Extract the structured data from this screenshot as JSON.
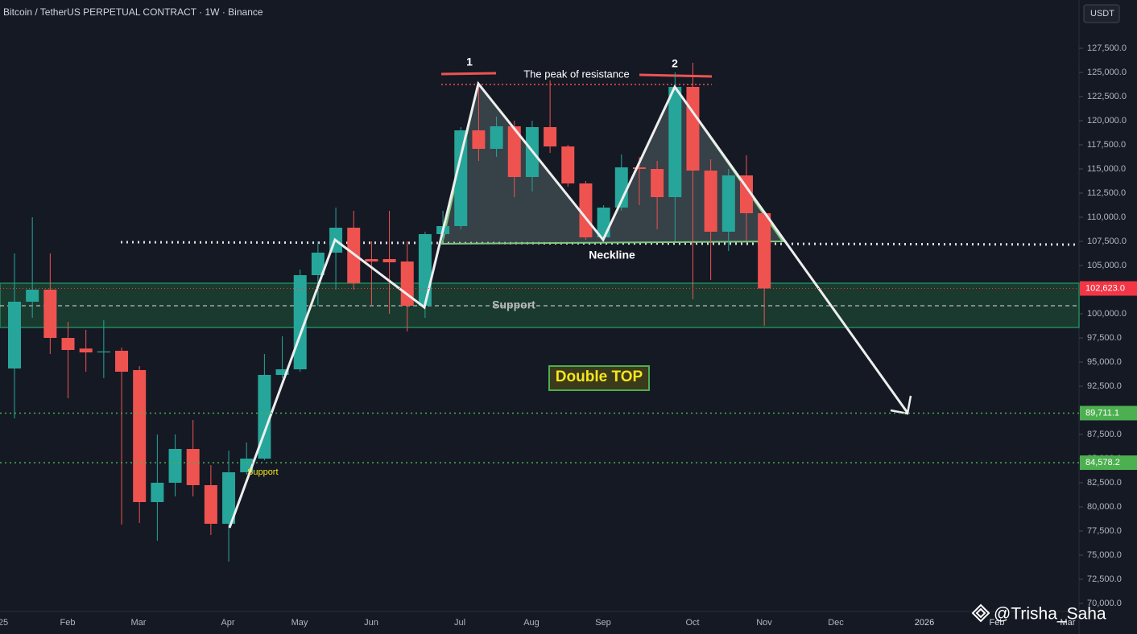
{
  "chart_data": {
    "type": "candlestick",
    "title": "Bitcoin / TetherUS PERPETUAL CONTRACT · 1W · Binance",
    "currency": "USDT",
    "up_color": "#26a69a",
    "down_color": "#ef5350",
    "open": [
      94333,
      101250,
      102500,
      97500,
      96400,
      96000,
      96170,
      94167,
      80500,
      82500,
      86000,
      82250,
      78250,
      83583,
      85000,
      93667,
      94250,
      104000,
      106333,
      108917,
      105667,
      105667,
      105417,
      100833,
      108250,
      109083,
      119000,
      117083,
      119417,
      114167,
      119333,
      117333,
      113500,
      107917,
      111000,
      115167,
      115000,
      112083,
      123500,
      114833,
      108500,
      114333,
      110417
    ],
    "high": [
      106250,
      110000,
      106250,
      99167,
      98333,
      99333,
      96500,
      94583,
      87500,
      87500,
      89000,
      84333,
      85833,
      86667,
      95833,
      97667,
      104583,
      107500,
      111000,
      110667,
      107500,
      110667,
      107500,
      108500,
      110667,
      119333,
      123750,
      120417,
      120000,
      120000,
      124167,
      117500,
      113750,
      111250,
      116500,
      116250,
      115833,
      125000,
      126000,
      116000,
      115000,
      116417,
      110667
    ],
    "low": [
      89167,
      99583,
      95833,
      91250,
      94000,
      93333,
      78167,
      78333,
      76500,
      81083,
      81083,
      77083,
      74333,
      83333,
      84833,
      93333,
      94000,
      100833,
      102500,
      102500,
      100833,
      100000,
      98167,
      99583,
      107500,
      108750,
      115833,
      116250,
      112083,
      112667,
      116667,
      113167,
      107667,
      107500,
      110667,
      111250,
      108750,
      107500,
      101500,
      103500,
      106500,
      107500,
      98750
    ],
    "close": [
      101250,
      102500,
      97500,
      96250,
      96000,
      96100,
      94000,
      80500,
      82500,
      86000,
      82250,
      78250,
      83583,
      85000,
      93667,
      94250,
      104000,
      106333,
      108917,
      103167,
      105417,
      105333,
      100833,
      108250,
      109083,
      119000,
      117083,
      119417,
      114167,
      119333,
      117333,
      113500,
      107917,
      111000,
      115167,
      115000,
      112083,
      123500,
      114833,
      108500,
      114333,
      110417,
      102623
    ],
    "ylim": [
      69167,
      132500
    ],
    "yticks": [
      {
        "value": 127500,
        "label": "127,500.0"
      },
      {
        "value": 125000,
        "label": "125,000.0"
      },
      {
        "value": 122500,
        "label": "122,500.0"
      },
      {
        "value": 120000,
        "label": "120,000.0"
      },
      {
        "value": 117500,
        "label": "117,500.0"
      },
      {
        "value": 115000,
        "label": "115,000.0"
      },
      {
        "value": 112500,
        "label": "112,500.0"
      },
      {
        "value": 110000,
        "label": "110,000.0"
      },
      {
        "value": 107500,
        "label": "107,500.0"
      },
      {
        "value": 105000,
        "label": "105,000.0"
      },
      {
        "value": 102500,
        "label": "102,500.0"
      },
      {
        "value": 100000,
        "label": "100,000.0"
      },
      {
        "value": 97500,
        "label": "97,500.0"
      },
      {
        "value": 95000,
        "label": "95,000.0"
      },
      {
        "value": 92500,
        "label": "92,500.0"
      },
      {
        "value": 90000,
        "label": "90,000.0"
      },
      {
        "value": 87500,
        "label": "87,500.0"
      },
      {
        "value": 85000,
        "label": "85,000.0"
      },
      {
        "value": 82500,
        "label": "82,500.0"
      },
      {
        "value": 80000,
        "label": "80,000.0"
      },
      {
        "value": 77500,
        "label": "77,500.0"
      },
      {
        "value": 75000,
        "label": "75,000.0"
      },
      {
        "value": 72500,
        "label": "72,500.0"
      },
      {
        "value": 70000,
        "label": "70,000.0"
      }
    ],
    "price_labels": [
      {
        "value": 102623,
        "label": "102,623.0",
        "color": "#f23645"
      },
      {
        "value": 89711.1,
        "label": "89,711.1",
        "color": "#4caf50"
      },
      {
        "value": 84578.2,
        "label": "84,578.2",
        "color": "#4caf50"
      }
    ],
    "xaxis_labels": [
      "25",
      "Feb",
      "Mar",
      "Apr",
      "May",
      "Jun",
      "Jul",
      "Aug",
      "Sep",
      "Oct",
      "Nov",
      "Dec",
      "2026",
      "Feb",
      "Mar"
    ],
    "annotations": [
      "1",
      "2",
      "The peak of resistance",
      "Neckline",
      "Support",
      "Double TOP",
      "Support",
      "@Trisha_Saha"
    ]
  }
}
